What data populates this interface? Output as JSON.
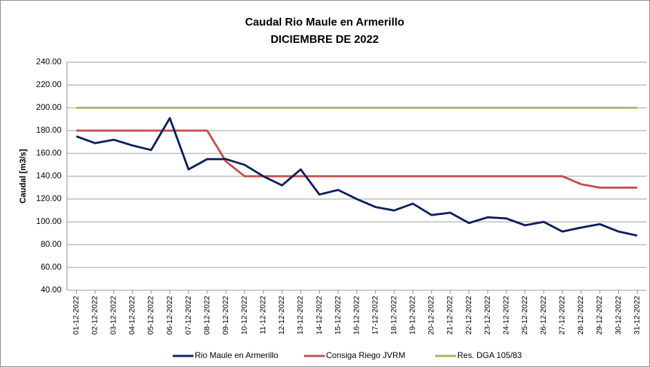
{
  "chart_data": {
    "type": "line",
    "title": "Caudal Rio Maule en Armerillo",
    "subtitle": "DICIEMBRE DE 2022",
    "y_label": "Caudal [m3/s]",
    "categories": [
      "01-12-2022",
      "02-12-2022",
      "03-12-2022",
      "04-12-2022",
      "05-12-2022",
      "06-12-2022",
      "07-12-2022",
      "08-12-2022",
      "09-12-2022",
      "10-12-2022",
      "11-12-2022",
      "12-12-2022",
      "13-12-2022",
      "14-12-2022",
      "15-12-2022",
      "16-12-2022",
      "17-12-2022",
      "18-12-2022",
      "19-12-2022",
      "20-12-2022",
      "21-12-2022",
      "22-12-2022",
      "23-12-2022",
      "24-12-2022",
      "25-12-2022",
      "26-12-2022",
      "27-12-2022",
      "28-12-2022",
      "29-12-2022",
      "30-12-2022",
      "31-12-2022"
    ],
    "series": [
      {
        "name": "Rio Maule en Armerillo",
        "color": "#0d1f5c",
        "values": [
          175,
          169,
          172,
          167,
          163,
          191,
          146,
          155,
          155,
          150,
          140,
          132,
          146,
          124,
          128,
          120,
          113,
          110,
          116,
          106,
          108,
          99,
          104,
          103,
          97,
          100,
          91.5,
          95,
          98,
          91.5,
          88
        ]
      },
      {
        "name": "Consiga Riego JVRM",
        "color": "#c0504d",
        "values": [
          180,
          180,
          180,
          180,
          180,
          180,
          180,
          180,
          153,
          140,
          140,
          140,
          140,
          140,
          140,
          140,
          140,
          140,
          140,
          140,
          140,
          140,
          140,
          140,
          140,
          140,
          140,
          133,
          130,
          130,
          130
        ]
      },
      {
        "name": "Res. DGA 105/83",
        "color": "#9bbb59",
        "values": [
          200,
          200,
          200,
          200,
          200,
          200,
          200,
          200,
          200,
          200,
          200,
          200,
          200,
          200,
          200,
          200,
          200,
          200,
          200,
          200,
          200,
          200,
          200,
          200,
          200,
          200,
          200,
          200,
          200,
          200,
          200
        ]
      }
    ],
    "ylim": [
      40,
      240
    ],
    "yticks": [
      {
        "value": 40,
        "label": "40.00"
      },
      {
        "value": 60,
        "label": "60.00"
      },
      {
        "value": 80,
        "label": "80.00"
      },
      {
        "value": 100,
        "label": "100.00"
      },
      {
        "value": 120,
        "label": "120.00"
      },
      {
        "value": 140,
        "label": "140.00"
      },
      {
        "value": 160,
        "label": "160.00"
      },
      {
        "value": 180,
        "label": "180.00"
      },
      {
        "value": 200,
        "label": "200.00"
      },
      {
        "value": 220,
        "label": "220.00"
      },
      {
        "value": 240,
        "label": "240.00"
      }
    ],
    "grid": true,
    "legend": "bottom"
  }
}
